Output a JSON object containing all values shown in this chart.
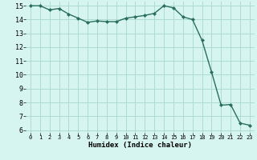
{
  "x": [
    0,
    1,
    2,
    3,
    4,
    5,
    6,
    7,
    8,
    9,
    10,
    11,
    12,
    13,
    14,
    15,
    16,
    17,
    18,
    19,
    20,
    21,
    22,
    23
  ],
  "y": [
    15.0,
    15.0,
    14.7,
    14.8,
    14.4,
    14.1,
    13.8,
    13.9,
    13.85,
    13.85,
    14.1,
    14.2,
    14.3,
    14.45,
    15.0,
    14.85,
    14.2,
    14.0,
    12.5,
    10.2,
    7.8,
    7.85,
    6.5,
    6.35
  ],
  "xlabel": "Humidex (Indice chaleur)",
  "ylim": [
    5.8,
    15.3
  ],
  "xlim": [
    -0.5,
    23.5
  ],
  "yticks": [
    6,
    7,
    8,
    9,
    10,
    11,
    12,
    13,
    14,
    15
  ],
  "xticks": [
    0,
    1,
    2,
    3,
    4,
    5,
    6,
    7,
    8,
    9,
    10,
    11,
    12,
    13,
    14,
    15,
    16,
    17,
    18,
    19,
    20,
    21,
    22,
    23
  ],
  "line_color": "#2a6e5e",
  "marker_color": "#2a6e5e",
  "bg_color": "#d6f5f0",
  "grid_color": "#a8d8cc",
  "xlabel_fontsize": 6.5,
  "tick_fontsize_x": 5.0,
  "tick_fontsize_y": 6.0
}
